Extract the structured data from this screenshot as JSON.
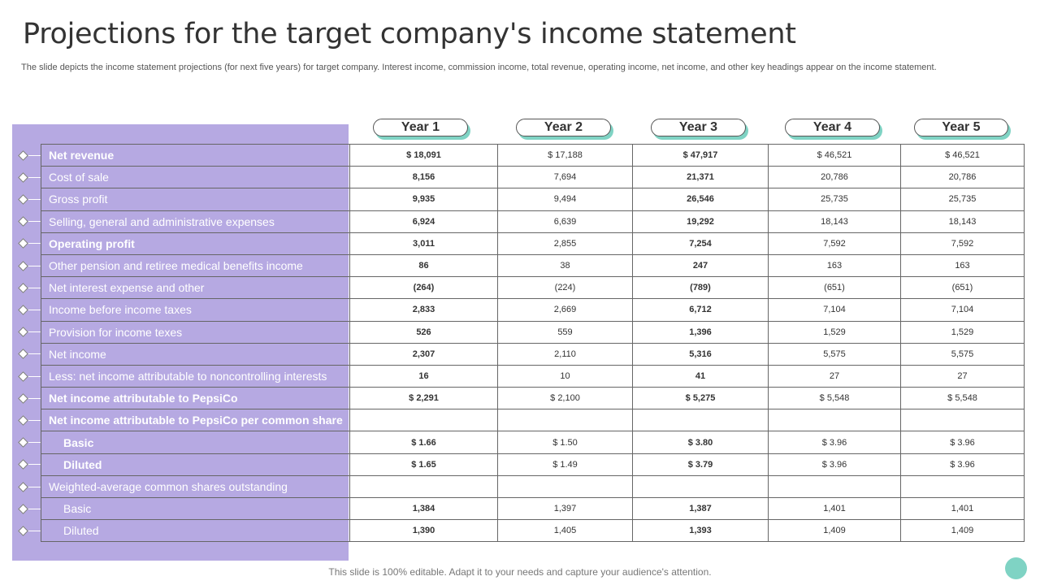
{
  "title": "Projections for the target company's income statement",
  "subtitle": "The slide depicts the income statement projections (for next five years) for target company. Interest income, commission income, total revenue, operating income, net income, and other key headings appear on the income statement.",
  "footer": "This slide is 100% editable.  Adapt it to your needs and capture your audience's attention.",
  "colors": {
    "panel": "#b6a9e2",
    "accent": "#7fd3c4"
  },
  "years": [
    "Year 1",
    "Year 2",
    "Year 3",
    "Year 4",
    "Year 5"
  ],
  "rows": [
    {
      "label": "Net revenue",
      "values": [
        "$ 18,091",
        "$ 17,188",
        "$ 47,917",
        "$ 46,521",
        "$ 46,521"
      ]
    },
    {
      "label": "Cost of sale",
      "values": [
        "8,156",
        "7,694",
        "21,371",
        "20,786",
        "20,786"
      ]
    },
    {
      "label": "Gross profit",
      "values": [
        "9,935",
        "9,494",
        "26,546",
        "25,735",
        "25,735"
      ]
    },
    {
      "label": "Selling, general and administrative expenses",
      "values": [
        "6,924",
        "6,639",
        "19,292",
        "18,143",
        "18,143"
      ]
    },
    {
      "label": "Operating profit",
      "values": [
        "3,011",
        "2,855",
        "7,254",
        "7,592",
        "7,592"
      ]
    },
    {
      "label": "Other pension and retiree medical benefits income",
      "values": [
        "86",
        "38",
        "247",
        "163",
        "163"
      ]
    },
    {
      "label": "Net interest expense and other",
      "values": [
        "(264)",
        "(224)",
        "(789)",
        "(651)",
        "(651)"
      ]
    },
    {
      "label": "Income before income taxes",
      "values": [
        "2,833",
        "2,669",
        "6,712",
        "7,104",
        "7,104"
      ]
    },
    {
      "label": "Provision for income  texes",
      "values": [
        "526",
        "559",
        "1,396",
        "1,529",
        "1,529"
      ]
    },
    {
      "label": "Net income",
      "values": [
        "2,307",
        "2,110",
        "5,316",
        "5,575",
        "5,575"
      ]
    },
    {
      "label": "Less: net income attributable to noncontrolling interests",
      "values": [
        "16",
        "10",
        "41",
        "27",
        "27"
      ]
    },
    {
      "label": "Net income attributable to PepsiCo",
      "values": [
        "$ 2,291",
        "$ 2,100",
        "$ 5,275",
        "$ 5,548",
        "$ 5,548"
      ]
    },
    {
      "label": "Net income attributable to PepsiCo per common share",
      "values": [
        "",
        "",
        "",
        "",
        ""
      ]
    },
    {
      "label": "Basic",
      "values": [
        "$ 1.66",
        "$ 1.50",
        "$ 3.80",
        "$ 3.96",
        "$ 3.96"
      ]
    },
    {
      "label": "Diluted",
      "values": [
        "$ 1.65",
        "$ 1.49",
        "$ 3.79",
        "$ 3.96",
        "$ 3.96"
      ]
    },
    {
      "label": "Weighted-average common shares outstanding",
      "values": [
        "",
        "",
        "",
        "",
        ""
      ]
    },
    {
      "label": "Basic",
      "values": [
        "1,384",
        "1,397",
        "1,387",
        "1,401",
        "1,401"
      ]
    },
    {
      "label": "Diluted",
      "values": [
        "1,390",
        "1,405",
        "1,393",
        "1,409",
        "1,409"
      ]
    }
  ]
}
